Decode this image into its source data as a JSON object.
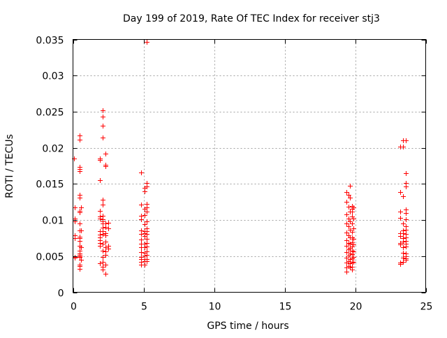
{
  "chart_data": {
    "type": "scatter",
    "title": "Day 199 of 2019, Rate Of TEC Index for receiver stj3",
    "xlabel": "GPS time / hours",
    "ylabel": "ROTI / TECUs",
    "xlim": [
      0,
      25
    ],
    "ylim": [
      0,
      0.035
    ],
    "x_ticks": [
      "0",
      "5",
      "10",
      "15",
      "20",
      "25"
    ],
    "y_ticks": [
      "0",
      "0.005",
      "0.01",
      "0.015",
      "0.02",
      "0.025",
      "0.03",
      "0.035"
    ],
    "grid": true,
    "marker": "plus",
    "color": "#ff0000",
    "series": [
      {
        "points": [
          [
            0.05,
            0.0185
          ],
          [
            0.1,
            0.0117
          ],
          [
            0.1,
            0.0102
          ],
          [
            0.1,
            0.0098
          ],
          [
            0.1,
            0.0079
          ],
          [
            0.1,
            0.0075
          ],
          [
            0.1,
            0.0049
          ],
          [
            0.1,
            0.0048
          ],
          [
            0.45,
            0.0217
          ],
          [
            0.45,
            0.0211
          ],
          [
            0.45,
            0.0174
          ],
          [
            0.45,
            0.0171
          ],
          [
            0.45,
            0.0168
          ],
          [
            0.45,
            0.0135
          ],
          [
            0.45,
            0.0131
          ],
          [
            0.45,
            0.0113
          ],
          [
            0.45,
            0.0111
          ],
          [
            0.45,
            0.0095
          ],
          [
            0.45,
            0.0086
          ],
          [
            0.45,
            0.0086
          ],
          [
            0.45,
            0.0077
          ],
          [
            0.45,
            0.0075
          ],
          [
            0.45,
            0.0071
          ],
          [
            0.45,
            0.0064
          ],
          [
            0.45,
            0.0058
          ],
          [
            0.45,
            0.0054
          ],
          [
            0.45,
            0.0052
          ],
          [
            0.45,
            0.005
          ],
          [
            0.45,
            0.0049
          ],
          [
            0.45,
            0.0038
          ],
          [
            0.45,
            0.0036
          ],
          [
            0.45,
            0.0032
          ],
          [
            0.55,
            0.0117
          ],
          [
            0.55,
            0.0086
          ],
          [
            0.55,
            0.0062
          ],
          [
            0.55,
            0.0045
          ],
          [
            1.9,
            0.0185
          ],
          [
            1.9,
            0.0183
          ],
          [
            1.9,
            0.0155
          ],
          [
            1.9,
            0.0113
          ],
          [
            1.9,
            0.0105
          ],
          [
            1.9,
            0.0102
          ],
          [
            1.9,
            0.0085
          ],
          [
            1.9,
            0.008
          ],
          [
            1.9,
            0.0076
          ],
          [
            1.9,
            0.0072
          ],
          [
            1.9,
            0.0068
          ],
          [
            1.9,
            0.0064
          ],
          [
            1.9,
            0.004
          ],
          [
            2.1,
            0.0252
          ],
          [
            2.1,
            0.0243
          ],
          [
            2.1,
            0.0231
          ],
          [
            2.1,
            0.0214
          ],
          [
            2.1,
            0.0128
          ],
          [
            2.1,
            0.0121
          ],
          [
            2.1,
            0.0106
          ],
          [
            2.1,
            0.0101
          ],
          [
            2.1,
            0.0098
          ],
          [
            2.1,
            0.0095
          ],
          [
            2.1,
            0.0089
          ],
          [
            2.1,
            0.0085
          ],
          [
            2.1,
            0.0081
          ],
          [
            2.1,
            0.0067
          ],
          [
            2.1,
            0.0058
          ],
          [
            2.1,
            0.0049
          ],
          [
            2.1,
            0.0042
          ],
          [
            2.1,
            0.0035
          ],
          [
            2.1,
            0.0031
          ],
          [
            2.3,
            0.0192
          ],
          [
            2.3,
            0.0176
          ],
          [
            2.3,
            0.0176
          ],
          [
            2.3,
            0.0175
          ],
          [
            2.3,
            0.0095
          ],
          [
            2.3,
            0.009
          ],
          [
            2.3,
            0.0082
          ],
          [
            2.3,
            0.0079
          ],
          [
            2.3,
            0.007
          ],
          [
            2.3,
            0.0062
          ],
          [
            2.3,
            0.0057
          ],
          [
            2.3,
            0.0052
          ],
          [
            2.3,
            0.0038
          ],
          [
            2.3,
            0.0026
          ],
          [
            2.5,
            0.0096
          ],
          [
            2.5,
            0.0088
          ],
          [
            2.5,
            0.0064
          ],
          [
            2.5,
            0.006
          ],
          [
            4.85,
            0.0166
          ],
          [
            4.85,
            0.0121
          ],
          [
            4.85,
            0.0106
          ],
          [
            4.85,
            0.0101
          ],
          [
            4.85,
            0.0086
          ],
          [
            4.85,
            0.0081
          ],
          [
            4.85,
            0.0073
          ],
          [
            4.85,
            0.0067
          ],
          [
            4.85,
            0.0062
          ],
          [
            4.85,
            0.0056
          ],
          [
            4.85,
            0.0049
          ],
          [
            4.85,
            0.0046
          ],
          [
            4.85,
            0.0042
          ],
          [
            4.85,
            0.0038
          ],
          [
            5.05,
            0.0145
          ],
          [
            5.05,
            0.014
          ],
          [
            5.05,
            0.0116
          ],
          [
            5.05,
            0.0107
          ],
          [
            5.05,
            0.0094
          ],
          [
            5.05,
            0.0085
          ],
          [
            5.05,
            0.0082
          ],
          [
            5.05,
            0.0078
          ],
          [
            5.05,
            0.0067
          ],
          [
            5.05,
            0.0062
          ],
          [
            5.05,
            0.0055
          ],
          [
            5.05,
            0.0051
          ],
          [
            5.05,
            0.0046
          ],
          [
            5.05,
            0.0043
          ],
          [
            5.05,
            0.0038
          ],
          [
            5.2,
            0.0347
          ],
          [
            5.2,
            0.0151
          ],
          [
            5.2,
            0.0146
          ],
          [
            5.2,
            0.0122
          ],
          [
            5.2,
            0.0117
          ],
          [
            5.2,
            0.0112
          ],
          [
            5.2,
            0.0098
          ],
          [
            5.2,
            0.0088
          ],
          [
            5.2,
            0.0085
          ],
          [
            5.2,
            0.0081
          ],
          [
            5.2,
            0.0074
          ],
          [
            5.2,
            0.0068
          ],
          [
            5.2,
            0.0063
          ],
          [
            5.2,
            0.0057
          ],
          [
            5.2,
            0.0052
          ],
          [
            5.2,
            0.0046
          ],
          [
            5.2,
            0.0043
          ],
          [
            19.4,
            0.0139
          ],
          [
            19.4,
            0.0125
          ],
          [
            19.4,
            0.0108
          ],
          [
            19.4,
            0.0095
          ],
          [
            19.4,
            0.0083
          ],
          [
            19.4,
            0.0072
          ],
          [
            19.4,
            0.0064
          ],
          [
            19.4,
            0.0056
          ],
          [
            19.4,
            0.0048
          ],
          [
            19.4,
            0.0041
          ],
          [
            19.4,
            0.0034
          ],
          [
            19.4,
            0.0029
          ],
          [
            19.55,
            0.0135
          ],
          [
            19.55,
            0.0118
          ],
          [
            19.55,
            0.0102
          ],
          [
            19.55,
            0.0091
          ],
          [
            19.55,
            0.0079
          ],
          [
            19.55,
            0.0068
          ],
          [
            19.55,
            0.0059
          ],
          [
            19.55,
            0.0051
          ],
          [
            19.55,
            0.0043
          ],
          [
            19.55,
            0.0036
          ],
          [
            19.65,
            0.0147
          ],
          [
            19.65,
            0.0131
          ],
          [
            19.65,
            0.0112
          ],
          [
            19.65,
            0.0098
          ],
          [
            19.65,
            0.0087
          ],
          [
            19.65,
            0.0076
          ],
          [
            19.65,
            0.0067
          ],
          [
            19.65,
            0.0061
          ],
          [
            19.65,
            0.0054
          ],
          [
            19.65,
            0.0046
          ],
          [
            19.65,
            0.004
          ],
          [
            19.65,
            0.0034
          ],
          [
            19.8,
            0.0119
          ],
          [
            19.8,
            0.0116
          ],
          [
            19.8,
            0.0112
          ],
          [
            19.8,
            0.0105
          ],
          [
            19.8,
            0.0095
          ],
          [
            19.8,
            0.0084
          ],
          [
            19.8,
            0.0076
          ],
          [
            19.8,
            0.0069
          ],
          [
            19.8,
            0.0063
          ],
          [
            19.8,
            0.0058
          ],
          [
            19.8,
            0.0053
          ],
          [
            19.8,
            0.0047
          ],
          [
            19.8,
            0.0041
          ],
          [
            19.8,
            0.0035
          ],
          [
            19.8,
            0.0031
          ],
          [
            19.9,
            0.0117
          ],
          [
            19.9,
            0.0102
          ],
          [
            19.9,
            0.0088
          ],
          [
            19.9,
            0.0074
          ],
          [
            19.9,
            0.0066
          ],
          [
            19.9,
            0.0057
          ],
          [
            19.9,
            0.0049
          ],
          [
            19.9,
            0.0042
          ],
          [
            23.2,
            0.0202
          ],
          [
            23.2,
            0.0139
          ],
          [
            23.2,
            0.0112
          ],
          [
            23.2,
            0.0103
          ],
          [
            23.2,
            0.0082
          ],
          [
            23.2,
            0.0078
          ],
          [
            23.2,
            0.0068
          ],
          [
            23.2,
            0.0066
          ],
          [
            23.2,
            0.0041
          ],
          [
            23.2,
            0.0039
          ],
          [
            23.4,
            0.021
          ],
          [
            23.4,
            0.0202
          ],
          [
            23.4,
            0.0133
          ],
          [
            23.4,
            0.0095
          ],
          [
            23.4,
            0.0086
          ],
          [
            23.4,
            0.0082
          ],
          [
            23.4,
            0.0075
          ],
          [
            23.4,
            0.007
          ],
          [
            23.4,
            0.0062
          ],
          [
            23.4,
            0.0055
          ],
          [
            23.4,
            0.0048
          ],
          [
            23.4,
            0.0042
          ],
          [
            23.6,
            0.021
          ],
          [
            23.6,
            0.0165
          ],
          [
            23.6,
            0.0151
          ],
          [
            23.6,
            0.0146
          ],
          [
            23.6,
            0.0115
          ],
          [
            23.6,
            0.011
          ],
          [
            23.6,
            0.0101
          ],
          [
            23.6,
            0.0091
          ],
          [
            23.6,
            0.0087
          ],
          [
            23.6,
            0.0081
          ],
          [
            23.6,
            0.0076
          ],
          [
            23.6,
            0.0071
          ],
          [
            23.6,
            0.0067
          ],
          [
            23.6,
            0.0063
          ],
          [
            23.6,
            0.0054
          ],
          [
            23.6,
            0.005
          ],
          [
            23.6,
            0.0047
          ],
          [
            23.6,
            0.0045
          ]
        ]
      }
    ]
  }
}
